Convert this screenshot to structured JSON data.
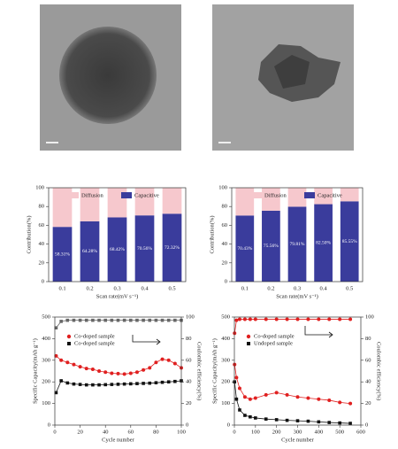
{
  "chart_data": [
    {
      "type": "bar",
      "stacked": true,
      "xlabel": "Scan rate(mV s⁻¹)",
      "ylabel": "Contribution(%)",
      "categories": [
        "0.1",
        "0.2",
        "0.3",
        "0.4",
        "0.5"
      ],
      "series": [
        {
          "name": "Diffusion",
          "color": "#f6c8cd",
          "values": [
            41.69,
            35.72,
            31.58,
            29.44,
            27.68
          ]
        },
        {
          "name": "Capacitive",
          "color": "#3a3c9c",
          "values": [
            58.31,
            64.28,
            68.42,
            70.56,
            72.32
          ],
          "value_labels": [
            "58.31%",
            "64.28%",
            "68.42%",
            "70.56%",
            "72.32%"
          ]
        }
      ],
      "ylim": [
        0,
        100
      ],
      "yticks": [
        0,
        20,
        40,
        60,
        80,
        100
      ],
      "legend": "top"
    },
    {
      "type": "bar",
      "stacked": true,
      "xlabel": "Scan rate(mV s⁻¹)",
      "ylabel": "Contribution(%)",
      "categories": [
        "0.1",
        "0.2",
        "0.3",
        "0.4",
        "0.5"
      ],
      "series": [
        {
          "name": "Diffusion",
          "color": "#f6c8cd",
          "values": [
            29.57,
            24.44,
            20.19,
            17.5,
            14.45
          ]
        },
        {
          "name": "Capacitive",
          "color": "#3a3c9c",
          "values": [
            70.43,
            75.56,
            79.81,
            82.5,
            85.55
          ],
          "value_labels": [
            "70.43%",
            "75.56%",
            "79.81%",
            "82.50%",
            "85.55%"
          ]
        }
      ],
      "ylim": [
        0,
        100
      ],
      "yticks": [
        0,
        20,
        40,
        60,
        80,
        100
      ],
      "legend": "top"
    },
    {
      "type": "line",
      "xlabel": "Cycle number",
      "ylabel": "Specific Capacity(mAh g⁻¹)",
      "y2label": "Coulombic efficiency(%)",
      "x": [
        1,
        5,
        10,
        15,
        20,
        25,
        30,
        35,
        40,
        45,
        50,
        55,
        60,
        65,
        70,
        75,
        80,
        85,
        90,
        95,
        100
      ],
      "series": [
        {
          "name": "Co-doped sample",
          "color": "#e02020",
          "marker": "circle",
          "values": [
            320,
            300,
            290,
            280,
            270,
            262,
            258,
            250,
            245,
            240,
            238,
            236,
            240,
            245,
            255,
            265,
            290,
            305,
            300,
            285,
            265
          ]
        },
        {
          "name": "Co-doped sample",
          "color": "#111111",
          "marker": "square",
          "values": [
            150,
            205,
            195,
            190,
            188,
            186,
            186,
            186,
            187,
            188,
            189,
            190,
            191,
            192,
            193,
            194,
            196,
            198,
            200,
            202,
            205
          ]
        },
        {
          "color": "#666666",
          "marker": "square",
          "axis": "y2",
          "values": [
            90,
            96,
            97,
            97,
            97,
            97,
            97,
            97,
            97,
            97,
            97,
            97,
            97,
            97,
            97,
            97,
            97,
            97,
            97,
            97,
            97
          ]
        }
      ],
      "xlim": [
        0,
        100
      ],
      "xticks": [
        0,
        20,
        40,
        60,
        80,
        100
      ],
      "ylim": [
        0,
        500
      ],
      "yticks": [
        0,
        100,
        200,
        300,
        400,
        500
      ],
      "y2lim": [
        0,
        100
      ],
      "y2ticks": [
        0,
        20,
        40,
        60,
        80,
        100
      ],
      "legend": "upper left"
    },
    {
      "type": "line",
      "xlabel": "Cycle number",
      "ylabel": "Specific Capacity(mAh g⁻¹)",
      "y2label": "Coulombic efficiency(%)",
      "x": [
        1,
        10,
        25,
        50,
        75,
        100,
        150,
        200,
        250,
        300,
        350,
        400,
        450,
        500,
        550
      ],
      "series": [
        {
          "name": "Co-doped sample",
          "color": "#e02020",
          "marker": "circle",
          "values": [
            280,
            220,
            170,
            130,
            120,
            125,
            140,
            150,
            140,
            130,
            125,
            120,
            115,
            105,
            100
          ]
        },
        {
          "name": "Undoped sample",
          "color": "#111111",
          "marker": "square",
          "values": [
            200,
            120,
            70,
            45,
            38,
            33,
            28,
            25,
            22,
            20,
            18,
            15,
            12,
            10,
            8
          ]
        },
        {
          "color": "#e02020",
          "marker": "circle",
          "axis": "y2",
          "values": [
            85,
            97,
            98,
            98,
            98,
            98,
            98,
            98,
            98,
            98,
            98,
            98,
            98,
            98,
            98
          ]
        }
      ],
      "xlim": [
        0,
        600
      ],
      "xticks": [
        0,
        100,
        200,
        300,
        400,
        500,
        600
      ],
      "ylim": [
        0,
        500
      ],
      "yticks": [
        0,
        100,
        200,
        300,
        400,
        500
      ],
      "y2lim": [
        0,
        100
      ],
      "y2ticks": [
        0,
        20,
        40,
        60,
        80,
        100
      ],
      "legend": "upper left"
    }
  ]
}
